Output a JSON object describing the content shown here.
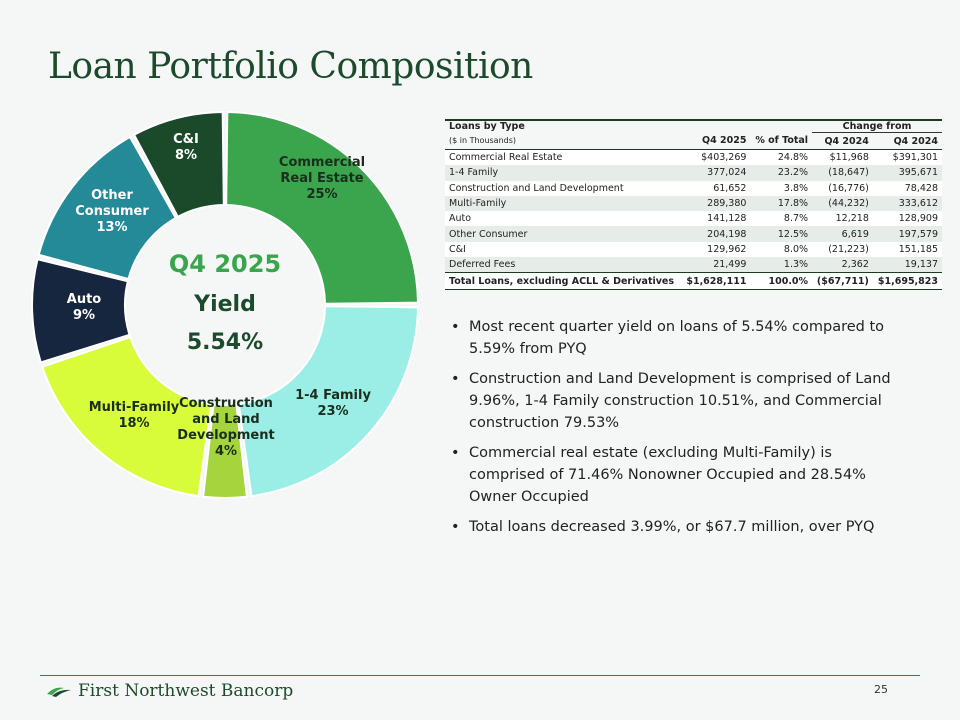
{
  "title": "Loan Portfolio Composition",
  "chart_data": {
    "type": "pie",
    "series": [
      {
        "name": "Commercial Real Estate",
        "value": 25,
        "label_lines": [
          "Commercial",
          "Real Estate",
          "25%"
        ],
        "color": "#3aa54c",
        "text_color": "#1a2e1d"
      },
      {
        "name": "1-4 Family",
        "value": 23,
        "label_lines": [
          "1-4 Family",
          "23%"
        ],
        "color": "#9aeee6",
        "text_color": "#1a2e1d"
      },
      {
        "name": "Construction and Land Development",
        "value": 4,
        "label_lines": [
          "Construction",
          "and Land",
          "Development",
          "4%"
        ],
        "color": "#a6d43c",
        "text_color": "#1a2e1d"
      },
      {
        "name": "Multi-Family",
        "value": 18,
        "label_lines": [
          "Multi-Family",
          "18%"
        ],
        "color": "#d9fc3a",
        "text_color": "#1a2e1d"
      },
      {
        "name": "Auto",
        "value": 9,
        "label_lines": [
          "Auto",
          "9%"
        ],
        "color": "#17263f",
        "text_color": "#ffffff"
      },
      {
        "name": "Other Consumer",
        "value": 13,
        "label_lines": [
          "Other",
          "Consumer",
          "13%"
        ],
        "color": "#248a98",
        "text_color": "#ffffff"
      },
      {
        "name": "C&I",
        "value": 8,
        "label_lines": [
          "C&I",
          "8%"
        ],
        "color": "#1b4a2b",
        "text_color": "#ffffff"
      }
    ],
    "center": {
      "line1": "Q4 2025",
      "line2": "Yield",
      "line3": "5.54%",
      "line1_color": "#3aa54c",
      "line2_color": "#1d4a2c",
      "line3_color": "#1d4a2c"
    }
  },
  "table": {
    "title": "Loans by Type",
    "subtitle": "($ in Thousands)",
    "change_from": "Change from",
    "columns": [
      "Q4 2025",
      "% of Total",
      "Q4 2024",
      "Q4 2024"
    ],
    "rows": [
      {
        "type": "Commercial Real Estate",
        "q4_2025": "$403,269",
        "pct": "24.8%",
        "change": "$11,968",
        "q4_2024": "$391,301"
      },
      {
        "type": "1-4 Family",
        "q4_2025": "377,024",
        "pct": "23.2%",
        "change": "(18,647)",
        "q4_2024": "395,671"
      },
      {
        "type": "Construction and Land Development",
        "q4_2025": "61,652",
        "pct": "3.8%",
        "change": "(16,776)",
        "q4_2024": "78,428"
      },
      {
        "type": "Multi-Family",
        "q4_2025": "289,380",
        "pct": "17.8%",
        "change": "(44,232)",
        "q4_2024": "333,612"
      },
      {
        "type": "Auto",
        "q4_2025": "141,128",
        "pct": "8.7%",
        "change": "12,218",
        "q4_2024": "128,909"
      },
      {
        "type": "Other Consumer",
        "q4_2025": "204,198",
        "pct": "12.5%",
        "change": "6,619",
        "q4_2024": "197,579"
      },
      {
        "type": "C&I",
        "q4_2025": "129,962",
        "pct": "8.0%",
        "change": "(21,223)",
        "q4_2024": "151,185"
      },
      {
        "type": "Deferred Fees",
        "q4_2025": "21,499",
        "pct": "1.3%",
        "change": "2,362",
        "q4_2024": "19,137"
      }
    ],
    "total": {
      "type": "Total Loans, excluding ACLL & Derivatives",
      "q4_2025": "$1,628,111",
      "pct": "100.0%",
      "change": "($67,711)",
      "q4_2024": "$1,695,823"
    }
  },
  "bullets": [
    "Most recent quarter yield on loans of 5.54% compared to 5.59% from PYQ",
    "Construction and Land Development is comprised of Land 9.96%, 1-4 Family construction 10.51%, and Commercial construction 79.53%",
    "Commercial real estate (excluding Multi-Family) is comprised of 71.46% Nonowner Occupied and 28.54% Owner Occupied",
    "Total loans decreased 3.99%, or $67.7 million, over PYQ"
  ],
  "footer": {
    "company": "First Northwest Bancorp",
    "page": "25"
  },
  "colors": {
    "brand_green": "#1d4a2c",
    "accent_green": "#3aa54c"
  }
}
